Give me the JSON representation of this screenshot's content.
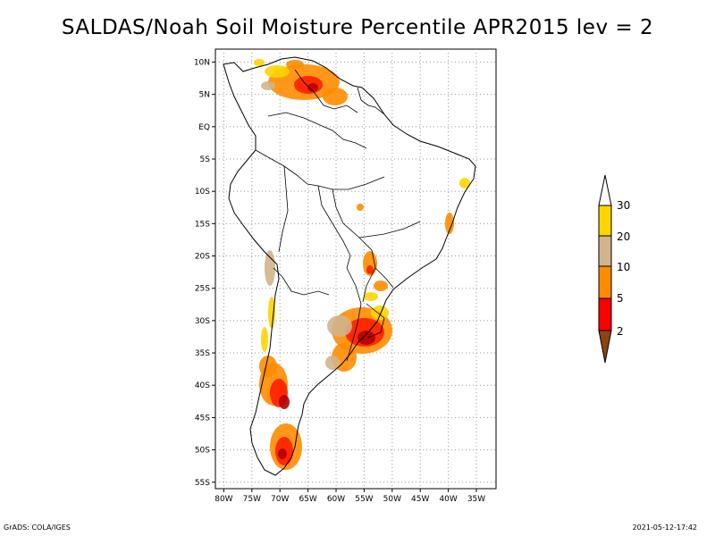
{
  "title": "SALDAS/Noah Soil Moisture Percentile APR2015 lev = 2",
  "footer": {
    "left": "GrADS: COLA/IGES",
    "right": "2021-05-12-17:42"
  },
  "map": {
    "lat_labels": [
      "10N",
      "5N",
      "EQ",
      "5S",
      "10S",
      "15S",
      "20S",
      "25S",
      "30S",
      "35S",
      "40S",
      "45S",
      "50S",
      "55S"
    ],
    "lon_labels": [
      "80W",
      "75W",
      "70W",
      "65W",
      "60W",
      "55W",
      "50W",
      "45W",
      "40W",
      "35W"
    ],
    "gridlines": "dotted",
    "land_outline_color": "#000000"
  },
  "colorbar": {
    "labels": [
      "30",
      "20",
      "10",
      "5",
      "2"
    ],
    "colors": {
      "above_30": "#ffffff",
      "20_30": "#ffd400",
      "10_20": "#d2b48c",
      "5_10": "#ff8c00",
      "2_5": "#ff0000",
      "below_2": "#8b4513"
    }
  },
  "palette": {
    "dark_red": "#b40000",
    "red": "#ff1e00",
    "orange": "#ff8c00",
    "tan": "#d2b48c",
    "yellow": "#ffd400"
  }
}
